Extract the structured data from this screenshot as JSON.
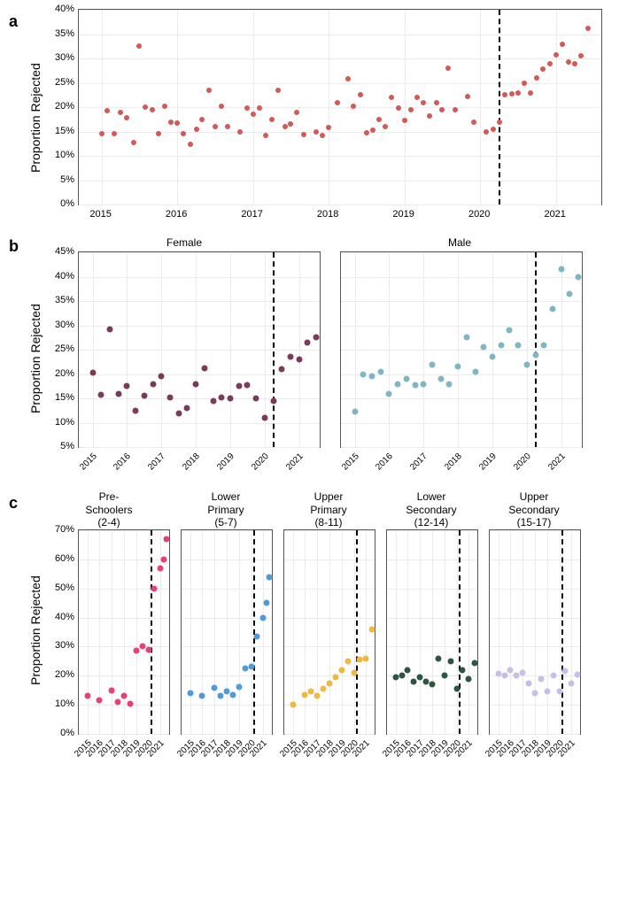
{
  "ylabel": "Proportion Rejected",
  "background": "#ffffff",
  "grid_color": "#ebebeb",
  "axis_color": "#555555",
  "vline_year": 2020.25,
  "panel_a": {
    "label": "a",
    "color": "#d15a58",
    "xlim": [
      2014.7,
      2021.6
    ],
    "ylim": [
      0,
      40
    ],
    "ytick_step": 5,
    "xticks": [
      2015,
      2016,
      2017,
      2018,
      2019,
      2020,
      2021
    ],
    "points": [
      {
        "x": 2015.0,
        "y": 14.5
      },
      {
        "x": 2015.08,
        "y": 19.2
      },
      {
        "x": 2015.17,
        "y": 14.5
      },
      {
        "x": 2015.25,
        "y": 19.0
      },
      {
        "x": 2015.33,
        "y": 17.8
      },
      {
        "x": 2015.42,
        "y": 12.8
      },
      {
        "x": 2015.5,
        "y": 32.5
      },
      {
        "x": 2015.58,
        "y": 20.0
      },
      {
        "x": 2015.67,
        "y": 19.5
      },
      {
        "x": 2015.75,
        "y": 14.5
      },
      {
        "x": 2015.83,
        "y": 20.2
      },
      {
        "x": 2015.92,
        "y": 17.0
      },
      {
        "x": 2016.0,
        "y": 16.8
      },
      {
        "x": 2016.08,
        "y": 14.5
      },
      {
        "x": 2016.17,
        "y": 12.3
      },
      {
        "x": 2016.25,
        "y": 15.5
      },
      {
        "x": 2016.33,
        "y": 17.5
      },
      {
        "x": 2016.42,
        "y": 23.4
      },
      {
        "x": 2016.5,
        "y": 16.0
      },
      {
        "x": 2016.58,
        "y": 20.2
      },
      {
        "x": 2016.67,
        "y": 16.0
      },
      {
        "x": 2016.83,
        "y": 15.0
      },
      {
        "x": 2016.92,
        "y": 19.8
      },
      {
        "x": 2017.0,
        "y": 18.5
      },
      {
        "x": 2017.08,
        "y": 19.8
      },
      {
        "x": 2017.17,
        "y": 14.2
      },
      {
        "x": 2017.25,
        "y": 17.4
      },
      {
        "x": 2017.33,
        "y": 23.4
      },
      {
        "x": 2017.42,
        "y": 16.0
      },
      {
        "x": 2017.5,
        "y": 16.5
      },
      {
        "x": 2017.58,
        "y": 19.0
      },
      {
        "x": 2017.67,
        "y": 14.4
      },
      {
        "x": 2017.83,
        "y": 15.0
      },
      {
        "x": 2017.92,
        "y": 14.2
      },
      {
        "x": 2018.0,
        "y": 15.8
      },
      {
        "x": 2018.12,
        "y": 21.0
      },
      {
        "x": 2018.25,
        "y": 25.8
      },
      {
        "x": 2018.33,
        "y": 20.2
      },
      {
        "x": 2018.42,
        "y": 22.5
      },
      {
        "x": 2018.5,
        "y": 14.8
      },
      {
        "x": 2018.58,
        "y": 15.2
      },
      {
        "x": 2018.67,
        "y": 17.5
      },
      {
        "x": 2018.75,
        "y": 16.0
      },
      {
        "x": 2018.83,
        "y": 22.0
      },
      {
        "x": 2018.92,
        "y": 19.8
      },
      {
        "x": 2019.0,
        "y": 17.3
      },
      {
        "x": 2019.08,
        "y": 19.5
      },
      {
        "x": 2019.17,
        "y": 22.0
      },
      {
        "x": 2019.25,
        "y": 21.0
      },
      {
        "x": 2019.33,
        "y": 18.2
      },
      {
        "x": 2019.42,
        "y": 21.0
      },
      {
        "x": 2019.5,
        "y": 19.5
      },
      {
        "x": 2019.58,
        "y": 28.0
      },
      {
        "x": 2019.67,
        "y": 19.5
      },
      {
        "x": 2019.83,
        "y": 22.2
      },
      {
        "x": 2019.92,
        "y": 17.0
      },
      {
        "x": 2020.08,
        "y": 15.0
      },
      {
        "x": 2020.17,
        "y": 15.5
      },
      {
        "x": 2020.25,
        "y": 17.0
      },
      {
        "x": 2020.33,
        "y": 22.5
      },
      {
        "x": 2020.42,
        "y": 22.8
      },
      {
        "x": 2020.5,
        "y": 23.0
      },
      {
        "x": 2020.58,
        "y": 25.0
      },
      {
        "x": 2020.67,
        "y": 23.0
      },
      {
        "x": 2020.75,
        "y": 26.0
      },
      {
        "x": 2020.83,
        "y": 27.8
      },
      {
        "x": 2020.92,
        "y": 29.0
      },
      {
        "x": 2021.0,
        "y": 30.8
      },
      {
        "x": 2021.08,
        "y": 33.0
      },
      {
        "x": 2021.17,
        "y": 29.2
      },
      {
        "x": 2021.25,
        "y": 29.0
      },
      {
        "x": 2021.33,
        "y": 30.6
      },
      {
        "x": 2021.42,
        "y": 36.2
      }
    ]
  },
  "panel_b": {
    "label": "b",
    "xlim": [
      2014.6,
      2021.6
    ],
    "ylim": [
      5,
      45
    ],
    "ytick_step": 5,
    "xticks": [
      2015,
      2016,
      2017,
      2018,
      2019,
      2020,
      2021
    ],
    "facets": [
      {
        "title": "Female",
        "color": "#7c3a5b",
        "points": [
          {
            "x": 2015.0,
            "y": 20.2
          },
          {
            "x": 2015.25,
            "y": 15.8
          },
          {
            "x": 2015.5,
            "y": 29.2
          },
          {
            "x": 2015.75,
            "y": 16.0
          },
          {
            "x": 2016.0,
            "y": 17.5
          },
          {
            "x": 2016.25,
            "y": 12.4
          },
          {
            "x": 2016.5,
            "y": 15.5
          },
          {
            "x": 2016.75,
            "y": 17.9
          },
          {
            "x": 2017.0,
            "y": 19.5
          },
          {
            "x": 2017.25,
            "y": 15.2
          },
          {
            "x": 2017.5,
            "y": 12.0
          },
          {
            "x": 2017.75,
            "y": 13.0
          },
          {
            "x": 2018.0,
            "y": 18.0
          },
          {
            "x": 2018.25,
            "y": 21.2
          },
          {
            "x": 2018.5,
            "y": 14.5
          },
          {
            "x": 2018.75,
            "y": 15.1
          },
          {
            "x": 2019.0,
            "y": 15.0
          },
          {
            "x": 2019.25,
            "y": 17.5
          },
          {
            "x": 2019.5,
            "y": 17.8
          },
          {
            "x": 2019.75,
            "y": 15.0
          },
          {
            "x": 2020.0,
            "y": 11.0
          },
          {
            "x": 2020.25,
            "y": 14.5
          },
          {
            "x": 2020.5,
            "y": 21.0
          },
          {
            "x": 2020.75,
            "y": 23.5
          },
          {
            "x": 2021.0,
            "y": 23.0
          },
          {
            "x": 2021.25,
            "y": 26.5
          },
          {
            "x": 2021.5,
            "y": 27.5
          }
        ]
      },
      {
        "title": "Male",
        "color": "#7eb7c2",
        "points": [
          {
            "x": 2015.0,
            "y": 12.2
          },
          {
            "x": 2015.25,
            "y": 20.0
          },
          {
            "x": 2015.5,
            "y": 19.5
          },
          {
            "x": 2015.75,
            "y": 20.5
          },
          {
            "x": 2016.0,
            "y": 16.0
          },
          {
            "x": 2016.25,
            "y": 18.0
          },
          {
            "x": 2016.5,
            "y": 19.0
          },
          {
            "x": 2016.75,
            "y": 17.8
          },
          {
            "x": 2017.0,
            "y": 17.9
          },
          {
            "x": 2017.25,
            "y": 22.0
          },
          {
            "x": 2017.5,
            "y": 19.0
          },
          {
            "x": 2017.75,
            "y": 18.0
          },
          {
            "x": 2018.0,
            "y": 21.5
          },
          {
            "x": 2018.25,
            "y": 27.5
          },
          {
            "x": 2018.5,
            "y": 20.5
          },
          {
            "x": 2018.75,
            "y": 25.5
          },
          {
            "x": 2019.0,
            "y": 23.5
          },
          {
            "x": 2019.25,
            "y": 26.0
          },
          {
            "x": 2019.5,
            "y": 29.0
          },
          {
            "x": 2019.75,
            "y": 26.0
          },
          {
            "x": 2020.0,
            "y": 21.9
          },
          {
            "x": 2020.25,
            "y": 24.0
          },
          {
            "x": 2020.5,
            "y": 26.0
          },
          {
            "x": 2020.75,
            "y": 33.3
          },
          {
            "x": 2021.0,
            "y": 41.5
          },
          {
            "x": 2021.25,
            "y": 36.5
          },
          {
            "x": 2021.5,
            "y": 40.0
          }
        ]
      }
    ]
  },
  "panel_c": {
    "label": "c",
    "xlim": [
      2014.3,
      2021.7
    ],
    "ylim": [
      0,
      70
    ],
    "ytick_step": 10,
    "xticks": [
      2015,
      2016,
      2017,
      2018,
      2019,
      2020,
      2021
    ],
    "facets": [
      {
        "title_l1": "Pre-",
        "title_l2": "Schoolers",
        "title_l3": "(2-4)",
        "color": "#e64076",
        "points": [
          {
            "x": 2015,
            "y": 13.0
          },
          {
            "x": 2016,
            "y": 11.5
          },
          {
            "x": 2017,
            "y": 15.0
          },
          {
            "x": 2017.5,
            "y": 11.0
          },
          {
            "x": 2018,
            "y": 13.0
          },
          {
            "x": 2018.5,
            "y": 10.5
          },
          {
            "x": 2019,
            "y": 28.5
          },
          {
            "x": 2019.5,
            "y": 30.0
          },
          {
            "x": 2020,
            "y": 29.0
          },
          {
            "x": 2020.5,
            "y": 50.0
          },
          {
            "x": 2021,
            "y": 57.0
          },
          {
            "x": 2021.3,
            "y": 60.0
          },
          {
            "x": 2021.5,
            "y": 67.0
          }
        ]
      },
      {
        "title_l1": "Lower",
        "title_l2": "Primary",
        "title_l3": "(5-7)",
        "color": "#4f9bd9",
        "points": [
          {
            "x": 2015,
            "y": 14.0
          },
          {
            "x": 2016,
            "y": 13.0
          },
          {
            "x": 2017,
            "y": 15.8
          },
          {
            "x": 2017.5,
            "y": 13.0
          },
          {
            "x": 2018,
            "y": 14.5
          },
          {
            "x": 2018.5,
            "y": 13.5
          },
          {
            "x": 2019,
            "y": 16.0
          },
          {
            "x": 2019.5,
            "y": 22.5
          },
          {
            "x": 2020,
            "y": 23.0
          },
          {
            "x": 2020.5,
            "y": 33.5
          },
          {
            "x": 2021,
            "y": 40.0
          },
          {
            "x": 2021.3,
            "y": 45.0
          },
          {
            "x": 2021.5,
            "y": 54.0
          }
        ]
      },
      {
        "title_l1": "Upper",
        "title_l2": "Primary",
        "title_l3": "(8-11)",
        "color": "#f0b840",
        "points": [
          {
            "x": 2015,
            "y": 10.0
          },
          {
            "x": 2016,
            "y": 13.5
          },
          {
            "x": 2016.5,
            "y": 14.5
          },
          {
            "x": 2017,
            "y": 13.0
          },
          {
            "x": 2017.5,
            "y": 15.5
          },
          {
            "x": 2018,
            "y": 17.5
          },
          {
            "x": 2018.5,
            "y": 19.5
          },
          {
            "x": 2019,
            "y": 22.0
          },
          {
            "x": 2019.5,
            "y": 25.0
          },
          {
            "x": 2020,
            "y": 21.0
          },
          {
            "x": 2020.5,
            "y": 25.5
          },
          {
            "x": 2021,
            "y": 26.0
          },
          {
            "x": 2021.5,
            "y": 36.0
          }
        ]
      },
      {
        "title_l1": "Lower",
        "title_l2": "Secondary",
        "title_l3": "(12-14)",
        "color": "#2e5442",
        "points": [
          {
            "x": 2015,
            "y": 19.5
          },
          {
            "x": 2015.5,
            "y": 20.0
          },
          {
            "x": 2016,
            "y": 22.0
          },
          {
            "x": 2016.5,
            "y": 18.0
          },
          {
            "x": 2017,
            "y": 19.5
          },
          {
            "x": 2017.5,
            "y": 18.0
          },
          {
            "x": 2018,
            "y": 17.0
          },
          {
            "x": 2018.5,
            "y": 26.0
          },
          {
            "x": 2019,
            "y": 20.0
          },
          {
            "x": 2019.5,
            "y": 25.0
          },
          {
            "x": 2020,
            "y": 15.5
          },
          {
            "x": 2020.5,
            "y": 22.0
          },
          {
            "x": 2021,
            "y": 19.0
          },
          {
            "x": 2021.5,
            "y": 24.5
          }
        ]
      },
      {
        "title_l1": "Upper",
        "title_l2": "Secondary",
        "title_l3": "(15-17)",
        "color": "#c9bfe6",
        "points": [
          {
            "x": 2015,
            "y": 20.8
          },
          {
            "x": 2015.5,
            "y": 20.0
          },
          {
            "x": 2016,
            "y": 22.0
          },
          {
            "x": 2016.5,
            "y": 20.0
          },
          {
            "x": 2017,
            "y": 21.0
          },
          {
            "x": 2017.5,
            "y": 17.5
          },
          {
            "x": 2018,
            "y": 14.0
          },
          {
            "x": 2018.5,
            "y": 19.0
          },
          {
            "x": 2019,
            "y": 14.5
          },
          {
            "x": 2019.5,
            "y": 20.0
          },
          {
            "x": 2020,
            "y": 14.5
          },
          {
            "x": 2020.5,
            "y": 21.5
          },
          {
            "x": 2021,
            "y": 17.2
          },
          {
            "x": 2021.5,
            "y": 20.5
          }
        ]
      }
    ]
  }
}
